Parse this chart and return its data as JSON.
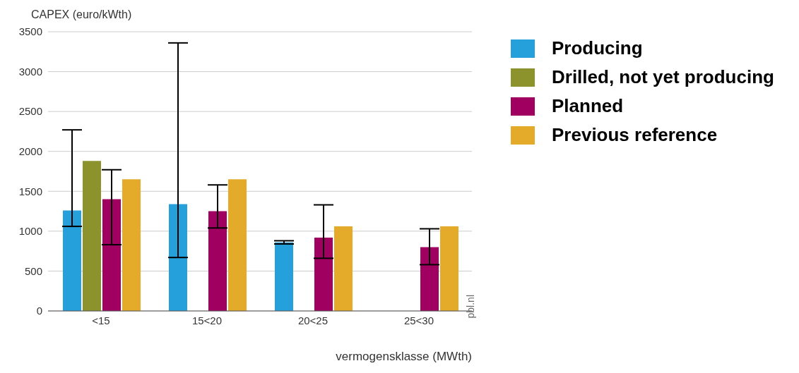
{
  "chart_data": {
    "type": "bar",
    "ylabel": "CAPEX (euro/kWth)",
    "xlabel": "vermogensklasse (MWth)",
    "categories": [
      "<15",
      "15<20",
      "20<25",
      "25<30"
    ],
    "series": [
      {
        "name": "Producing",
        "color": "#26a0da",
        "values": [
          1260,
          1340,
          860,
          null
        ],
        "errors": [
          [
            1060,
            2270
          ],
          [
            670,
            3360
          ],
          [
            840,
            880
          ],
          null
        ]
      },
      {
        "name": "Drilled, not yet producing",
        "color": "#8c922c",
        "values": [
          1880,
          null,
          null,
          null
        ]
      },
      {
        "name": "Planned",
        "color": "#a0005f",
        "values": [
          1400,
          1250,
          920,
          800
        ],
        "errors": [
          [
            830,
            1770
          ],
          [
            1040,
            1580
          ],
          [
            660,
            1330
          ],
          [
            580,
            1030
          ]
        ]
      },
      {
        "name": "Previous reference",
        "color": "#e4ab2b",
        "values": [
          1650,
          1650,
          1060,
          1060
        ]
      }
    ],
    "ylim": [
      0,
      3500
    ],
    "yticks": [
      0,
      500,
      1000,
      1500,
      2000,
      2500,
      3000,
      3500
    ],
    "grid": "y",
    "legend": "top right",
    "annotations": [
      "pbl.nl"
    ]
  }
}
